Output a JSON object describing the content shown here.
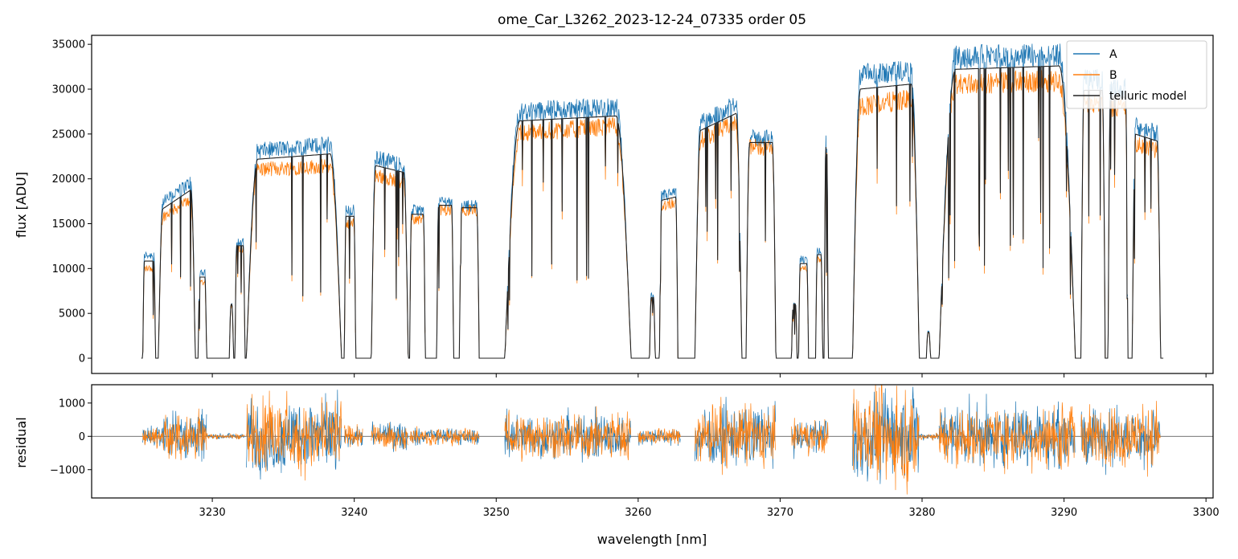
{
  "chart_data": [
    {
      "type": "line",
      "title": "ome_Car_L3262_2023-12-24_07335  order 05",
      "xlabel": "",
      "ylabel": "flux [ADU]",
      "xlim": [
        3221.5,
        3300.5
      ],
      "ylim": [
        -1700,
        36000
      ],
      "yticks": [
        0,
        5000,
        10000,
        15000,
        20000,
        25000,
        30000,
        35000
      ],
      "xticks": [
        3230,
        3240,
        3250,
        3260,
        3270,
        3280,
        3290,
        3300
      ],
      "legend": {
        "position": "top-right",
        "entries": [
          "A",
          "B",
          "telluric model"
        ]
      },
      "grid": false,
      "colors": {
        "A": "#1f77b4",
        "B": "#ff7f0e",
        "telluric model": "#222222"
      },
      "continuum_blocks": [
        {
          "x": [
            3225.1,
            3226.0
          ],
          "A": [
            11500,
            11500
          ],
          "B": [
            10000,
            10000
          ]
        },
        {
          "x": [
            3226.2,
            3228.8
          ],
          "A": [
            17000,
            20000
          ],
          "B": [
            15500,
            18000
          ]
        },
        {
          "x": [
            3229.0,
            3229.6
          ],
          "A": [
            9500,
            9500
          ],
          "B": [
            8500,
            8500
          ]
        },
        {
          "x": [
            3231.2,
            3231.5
          ],
          "A": [
            6200,
            6200
          ],
          "B": [
            5800,
            5800
          ]
        },
        {
          "x": [
            3231.6,
            3232.3
          ],
          "A": [
            13000,
            13000
          ],
          "B": [
            12000,
            12000
          ]
        },
        {
          "x": [
            3232.4,
            3239.1
          ],
          "A": [
            23000,
            24000
          ],
          "B": [
            21000,
            21500
          ]
        },
        {
          "x": [
            3239.3,
            3240.1
          ],
          "A": [
            16500,
            16500
          ],
          "B": [
            15000,
            15000
          ]
        },
        {
          "x": [
            3241.2,
            3243.8
          ],
          "A": [
            22500,
            21500
          ],
          "B": [
            20500,
            19500
          ]
        },
        {
          "x": [
            3243.9,
            3245.0
          ],
          "A": [
            16500,
            16500
          ],
          "B": [
            15500,
            15500
          ]
        },
        {
          "x": [
            3245.8,
            3247.0
          ],
          "A": [
            17500,
            17500
          ],
          "B": [
            16500,
            16500
          ]
        },
        {
          "x": [
            3247.4,
            3248.8
          ],
          "A": [
            17000,
            17000
          ],
          "B": [
            16500,
            16500
          ]
        },
        {
          "x": [
            3250.6,
            3259.5
          ],
          "A": [
            27500,
            28000
          ],
          "B": [
            25000,
            26000
          ]
        },
        {
          "x": [
            3260.8,
            3261.2
          ],
          "A": [
            7000,
            7000
          ],
          "B": [
            6500,
            6500
          ]
        },
        {
          "x": [
            3261.5,
            3262.8
          ],
          "A": [
            18000,
            18500
          ],
          "B": [
            17000,
            17500
          ]
        },
        {
          "x": [
            3264.0,
            3267.3
          ],
          "A": [
            26000,
            28500
          ],
          "B": [
            24000,
            26500
          ]
        },
        {
          "x": [
            3267.6,
            3269.7
          ],
          "A": [
            24500,
            24500
          ],
          "B": [
            23500,
            23500
          ]
        },
        {
          "x": [
            3270.8,
            3271.2
          ],
          "A": [
            6200,
            6200
          ],
          "B": [
            5800,
            5800
          ]
        },
        {
          "x": [
            3271.3,
            3272.0
          ],
          "A": [
            11000,
            11000
          ],
          "B": [
            10000,
            10000
          ]
        },
        {
          "x": [
            3272.5,
            3273.0
          ],
          "A": [
            12000,
            12000
          ],
          "B": [
            11000,
            11000
          ]
        },
        {
          "x": [
            3273.1,
            3273.4
          ],
          "A": [
            24000,
            24000
          ],
          "B": [
            23000,
            23000
          ]
        },
        {
          "x": [
            3275.1,
            3279.8
          ],
          "A": [
            31500,
            32000
          ],
          "B": [
            28000,
            29000
          ]
        },
        {
          "x": [
            3280.3,
            3280.6
          ],
          "A": [
            3000,
            3000
          ],
          "B": [
            2800,
            2800
          ]
        },
        {
          "x": [
            3281.2,
            3290.8
          ],
          "A": [
            33500,
            34000
          ],
          "B": [
            30500,
            31000
          ]
        },
        {
          "x": [
            3291.2,
            3292.9
          ],
          "A": [
            31000,
            31000
          ],
          "B": [
            28500,
            28500
          ]
        },
        {
          "x": [
            3293.1,
            3294.5
          ],
          "A": [
            30000,
            30000
          ],
          "B": [
            28000,
            28000
          ]
        },
        {
          "x": [
            3294.8,
            3296.8
          ],
          "A": [
            26000,
            25000
          ],
          "B": [
            24000,
            23000
          ]
        }
      ]
    },
    {
      "type": "line",
      "title": "",
      "xlabel": "wavelength [nm]",
      "ylabel": "residual",
      "xlim": [
        3221.5,
        3300.5
      ],
      "ylim": [
        -1850,
        1550
      ],
      "yticks": [
        -1000,
        0,
        1000
      ],
      "xticks": [
        3230,
        3240,
        3250,
        3260,
        3270,
        3280,
        3290,
        3300
      ],
      "grid": false,
      "zero_line": 0,
      "colors": {
        "A": "#1f77b4",
        "B": "#ff7f0e"
      },
      "noise_spans": [
        {
          "x": [
            3225.1,
            3226.5
          ],
          "amp": 300
        },
        {
          "x": [
            3226.5,
            3229.6
          ],
          "amp": 700
        },
        {
          "x": [
            3229.6,
            3232.3
          ],
          "amp": 80
        },
        {
          "x": [
            3232.4,
            3239.1
          ],
          "amp": 1100
        },
        {
          "x": [
            3239.3,
            3240.6
          ],
          "amp": 300
        },
        {
          "x": [
            3241.2,
            3243.8
          ],
          "amp": 400
        },
        {
          "x": [
            3243.9,
            3248.8
          ],
          "amp": 250
        },
        {
          "x": [
            3250.6,
            3259.5
          ],
          "amp": 700
        },
        {
          "x": [
            3260.0,
            3263.0
          ],
          "amp": 250
        },
        {
          "x": [
            3264.0,
            3269.7
          ],
          "amp": 900
        },
        {
          "x": [
            3270.8,
            3273.4
          ],
          "amp": 500
        },
        {
          "x": [
            3275.1,
            3279.8
          ],
          "amp": 1400
        },
        {
          "x": [
            3279.8,
            3281.2
          ],
          "amp": 100
        },
        {
          "x": [
            3281.2,
            3290.8
          ],
          "amp": 900
        },
        {
          "x": [
            3291.2,
            3296.8
          ],
          "amp": 900
        }
      ]
    }
  ]
}
